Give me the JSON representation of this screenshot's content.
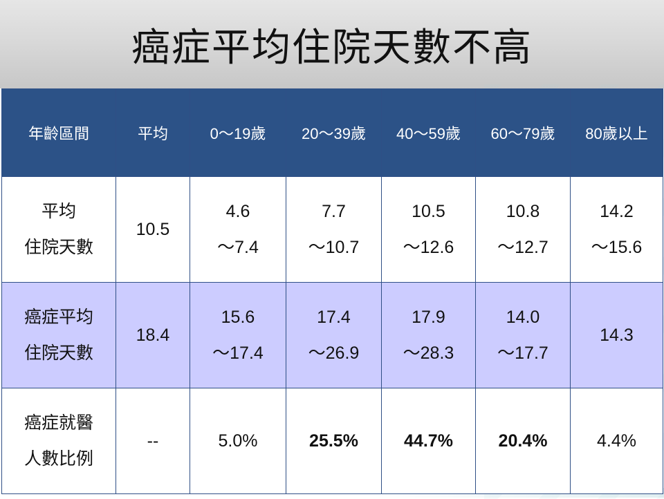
{
  "title": "癌症平均住院天數不高",
  "colors": {
    "header_bg": "#2c5287",
    "row_highlight_bg": "#ccccff",
    "highlight_text": "#e00000"
  },
  "table": {
    "headers": [
      "年齡區間",
      "平均",
      "0～19歲",
      "20～39歲",
      "40～59歲",
      "60～79歲",
      "80歲以上"
    ],
    "rows": [
      {
        "label": [
          "平均",
          "住院天數"
        ],
        "average": "10.5",
        "cells": [
          [
            "4.6",
            "～7.4"
          ],
          [
            "7.7",
            "～10.7"
          ],
          [
            "10.5",
            "～12.6"
          ],
          [
            "10.8",
            "～12.7"
          ],
          [
            "14.2",
            "～15.6"
          ]
        ]
      },
      {
        "label": [
          "癌症平均",
          "住院天數"
        ],
        "average": "18.4",
        "cells": [
          [
            "15.6",
            "～17.4"
          ],
          [
            "17.4",
            "～26.9"
          ],
          [
            "17.9",
            "～28.3"
          ],
          [
            "14.0",
            "～17.7"
          ],
          [
            "14.3"
          ]
        ]
      },
      {
        "label": [
          "癌症就醫",
          "人數比例"
        ],
        "average": "--",
        "cells": [
          "5.0%",
          "25.5%",
          "44.7%",
          "20.4%",
          "4.4%"
        ],
        "highlighted": [
          false,
          true,
          true,
          true,
          false
        ]
      }
    ]
  }
}
